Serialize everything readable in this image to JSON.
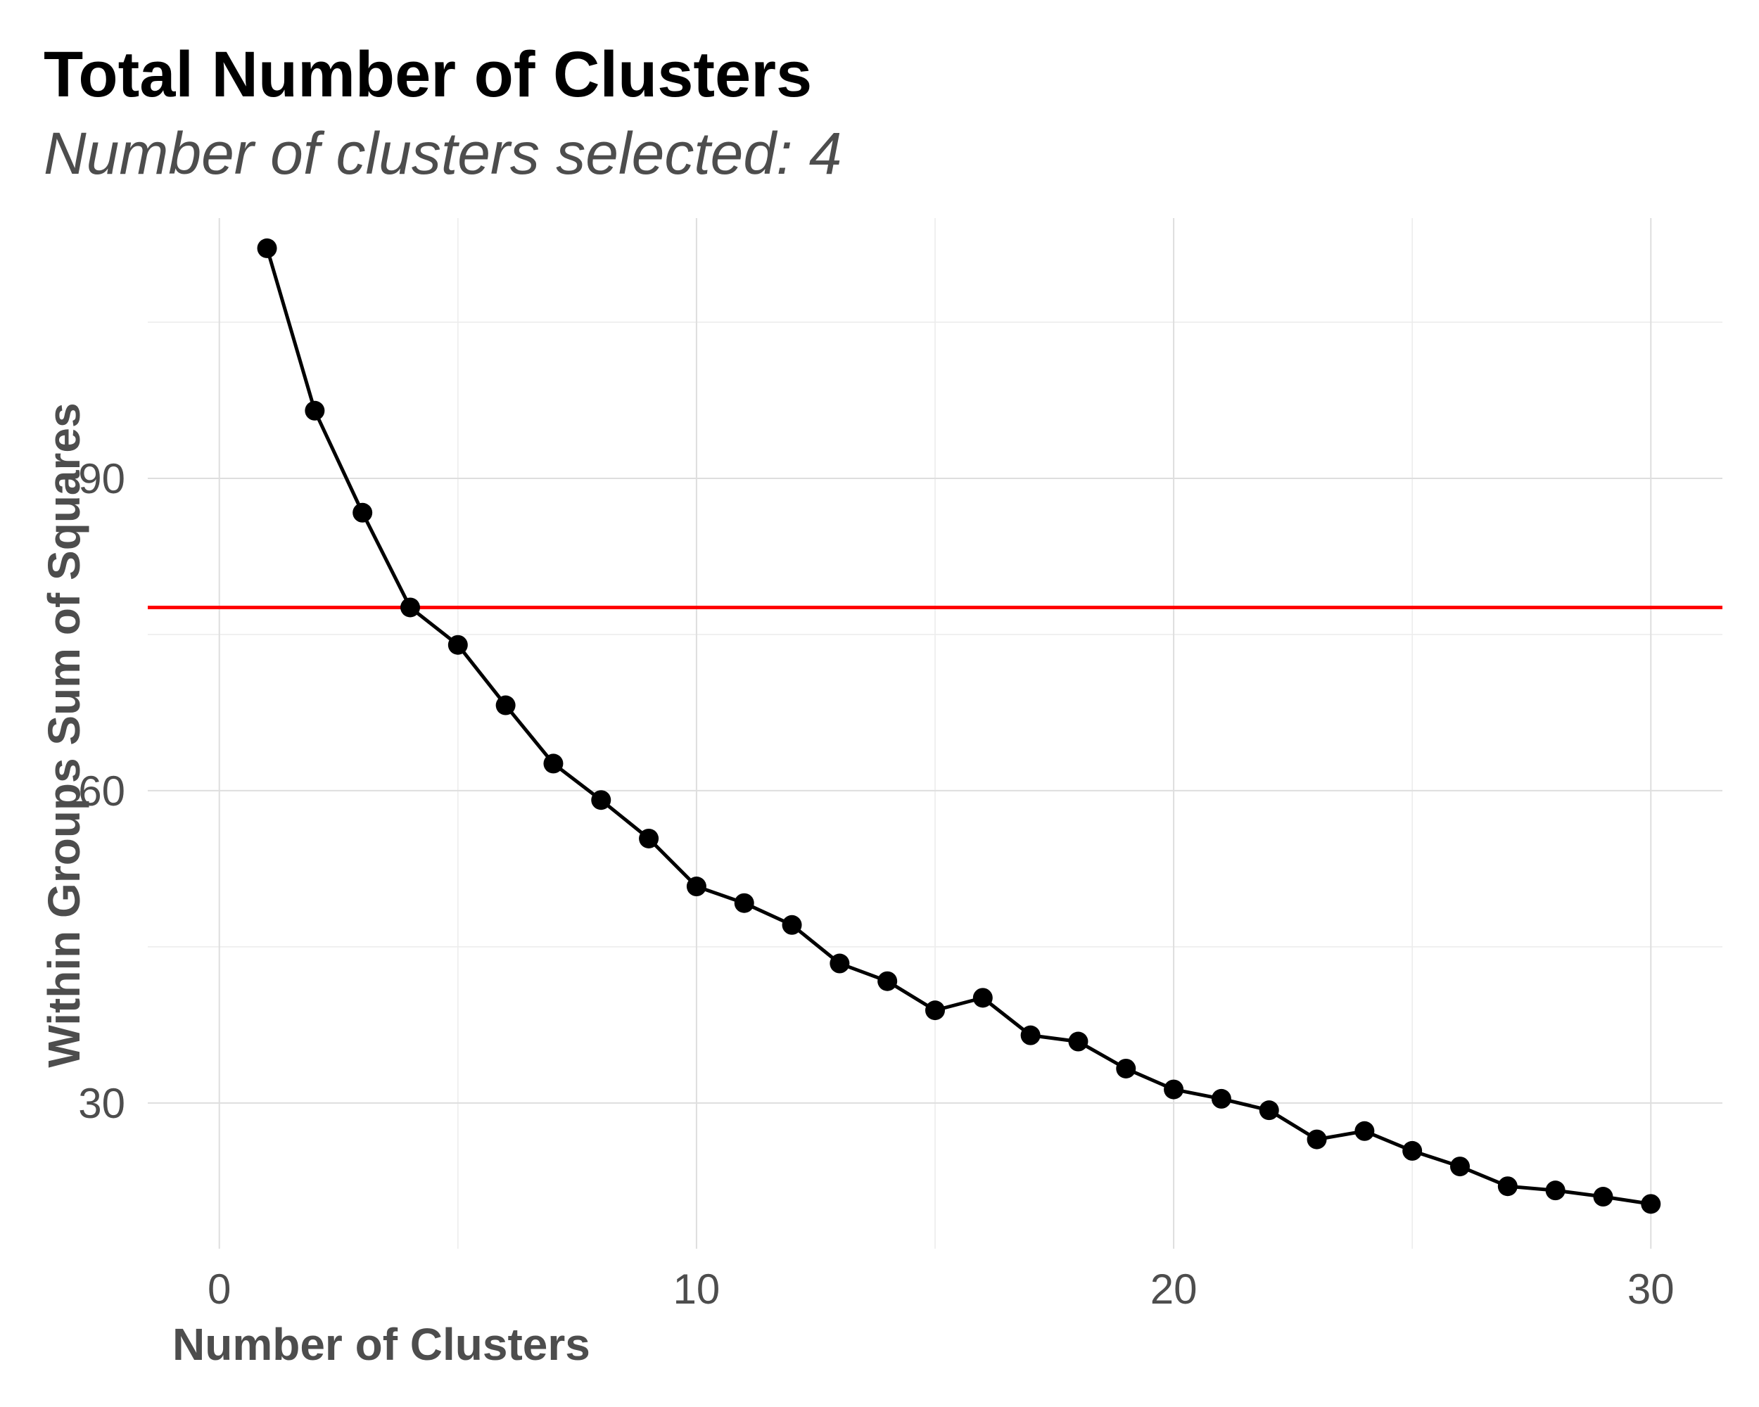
{
  "chart_data": {
    "type": "line",
    "title": "Total Number of Clusters",
    "subtitle": "Number of clusters selected: 4",
    "xlabel": "Number of Clusters",
    "ylabel": "Within Groups Sum of Squares",
    "xlim": [
      -1.5,
      31.5
    ],
    "ylim": [
      16,
      115
    ],
    "x_ticks": [
      0,
      10,
      20,
      30
    ],
    "x_tick_labels": [
      "0",
      "10",
      "20",
      "30"
    ],
    "y_ticks": [
      30,
      60,
      90
    ],
    "y_tick_labels": [
      "30",
      "60",
      "90"
    ],
    "x_minor_ticks": [
      5,
      15,
      25
    ],
    "y_minor_ticks": [
      45,
      75,
      105
    ],
    "grid": true,
    "series": [
      {
        "color": "#000000",
        "markers": true,
        "x": [
          1,
          2,
          3,
          4,
          5,
          6,
          7,
          8,
          9,
          10,
          11,
          12,
          13,
          14,
          15,
          16,
          17,
          18,
          19,
          20,
          21,
          22,
          23,
          24,
          25,
          26,
          27,
          28,
          29,
          30
        ],
        "y": [
          112.1,
          96.5,
          86.7,
          77.6,
          74.0,
          68.2,
          62.6,
          59.1,
          55.4,
          50.8,
          49.2,
          47.1,
          43.4,
          41.7,
          38.9,
          40.1,
          36.5,
          35.9,
          33.3,
          31.3,
          30.4,
          29.3,
          26.5,
          27.3,
          25.4,
          23.9,
          22.0,
          21.6,
          21.0,
          20.3
        ]
      }
    ],
    "reference_line": {
      "orientation": "horizontal",
      "y": 77.6,
      "color": "#ff0000"
    }
  }
}
